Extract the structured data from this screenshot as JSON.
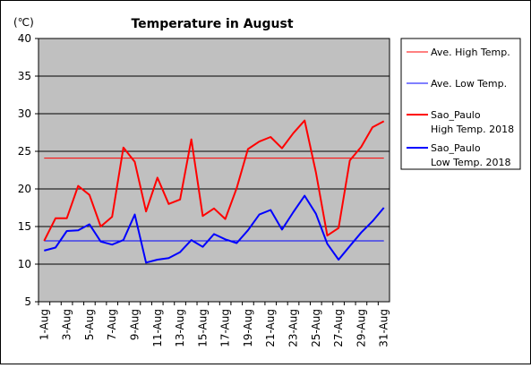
{
  "chart_data": {
    "type": "line",
    "title": "Temperature in August",
    "unit_label": "(℃)",
    "ylim": [
      5,
      40
    ],
    "yticks": [
      "40",
      "35",
      "30",
      "25",
      "20",
      "15",
      "10",
      "5"
    ],
    "ytick_values": [
      40,
      35,
      30,
      25,
      20,
      15,
      10,
      5
    ],
    "x": [
      "1-Aug",
      "2-Aug",
      "3-Aug",
      "4-Aug",
      "5-Aug",
      "6-Aug",
      "7-Aug",
      "8-Aug",
      "9-Aug",
      "10-Aug",
      "11-Aug",
      "12-Aug",
      "13-Aug",
      "14-Aug",
      "15-Aug",
      "16-Aug",
      "17-Aug",
      "18-Aug",
      "19-Aug",
      "20-Aug",
      "21-Aug",
      "22-Aug",
      "23-Aug",
      "24-Aug",
      "25-Aug",
      "26-Aug",
      "27-Aug",
      "28-Aug",
      "29-Aug",
      "30-Aug",
      "31-Aug"
    ],
    "xticks": [
      "1-Aug",
      "3-Aug",
      "5-Aug",
      "7-Aug",
      "9-Aug",
      "11-Aug",
      "13-Aug",
      "15-Aug",
      "17-Aug",
      "19-Aug",
      "21-Aug",
      "23-Aug",
      "25-Aug",
      "27-Aug",
      "29-Aug",
      "31-Aug"
    ],
    "grid": true,
    "plot_background": "#c0c0c0",
    "legend_position": "right",
    "series": [
      {
        "name": "Ave. High Temp.",
        "color": "#ff0000",
        "width": 1,
        "values": [
          24.1,
          24.1,
          24.1,
          24.1,
          24.1,
          24.1,
          24.1,
          24.1,
          24.1,
          24.1,
          24.1,
          24.1,
          24.1,
          24.1,
          24.1,
          24.1,
          24.1,
          24.1,
          24.1,
          24.1,
          24.1,
          24.1,
          24.1,
          24.1,
          24.1,
          24.1,
          24.1,
          24.1,
          24.1,
          24.1,
          24.1
        ]
      },
      {
        "name": "Ave. Low Temp.",
        "color": "#0000ff",
        "width": 1,
        "values": [
          13.1,
          13.1,
          13.1,
          13.1,
          13.1,
          13.1,
          13.1,
          13.1,
          13.1,
          13.1,
          13.1,
          13.1,
          13.1,
          13.1,
          13.1,
          13.1,
          13.1,
          13.1,
          13.1,
          13.1,
          13.1,
          13.1,
          13.1,
          13.1,
          13.1,
          13.1,
          13.1,
          13.1,
          13.1,
          13.1,
          13.1
        ]
      },
      {
        "name_lines": [
          "Sao_Paulo",
          "High Temp. 2018"
        ],
        "color": "#ff0000",
        "width": 2,
        "values": [
          13.1,
          16.1,
          16.1,
          20.4,
          19.2,
          15.0,
          16.3,
          25.5,
          23.6,
          17.0,
          21.5,
          18.0,
          18.6,
          26.6,
          16.4,
          17.4,
          16.0,
          20.1,
          25.3,
          26.3,
          26.9,
          25.4,
          27.4,
          29.1,
          22.2,
          13.8,
          14.8,
          23.8,
          25.6,
          28.2,
          29.0
        ]
      },
      {
        "name_lines": [
          "Sao_Paulo",
          "Low Temp. 2018"
        ],
        "color": "#0000ff",
        "width": 2,
        "values": [
          11.8,
          12.2,
          14.4,
          14.5,
          15.3,
          13.0,
          12.6,
          13.2,
          16.6,
          10.2,
          10.6,
          10.8,
          11.6,
          13.2,
          12.3,
          14.0,
          13.3,
          12.8,
          14.5,
          16.6,
          17.2,
          14.6,
          16.9,
          19.1,
          16.7,
          12.7,
          10.6,
          12.4,
          14.2,
          15.7,
          17.5
        ]
      }
    ]
  }
}
